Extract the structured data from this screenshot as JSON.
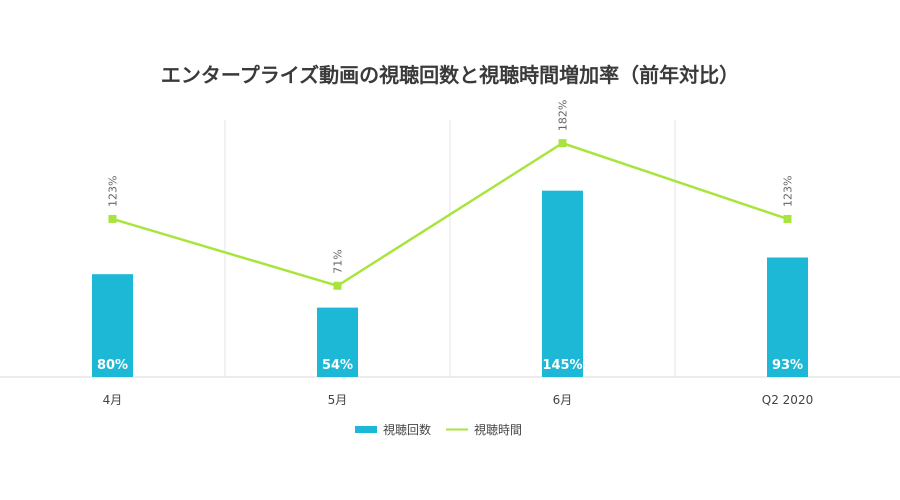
{
  "chart_data": {
    "type": "bar",
    "title": "エンタープライズ動画の視聴回数と視聴時間増加率（前年対比）",
    "categories": [
      "4月",
      "5月",
      "6月",
      "Q2 2020"
    ],
    "series": [
      {
        "name": "視聴回数",
        "type": "bar",
        "values": [
          80,
          54,
          145,
          93
        ],
        "labels": [
          "80%",
          "54%",
          "145%",
          "93%"
        ]
      },
      {
        "name": "視聴時間",
        "type": "line",
        "values": [
          123,
          71,
          182,
          123
        ],
        "labels": [
          "123%",
          "71%",
          "182%",
          "123%"
        ]
      }
    ],
    "ylim": [
      0,
      200
    ],
    "grid": "vertical",
    "legend": "bottom-center"
  },
  "colors": {
    "bar": "#1cb8d6",
    "line": "#a8e53c",
    "grid": "#e6e6e6",
    "axis": "#d9d9d9"
  }
}
